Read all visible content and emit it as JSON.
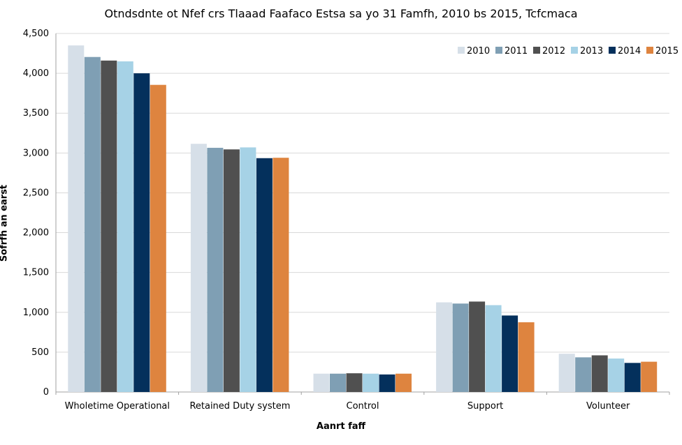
{
  "chart_data": {
    "type": "bar",
    "title": "Otndsdnte ot Nfef crs Tlaaad Faafaco Estsa sa yo 31 Famfh, 2010 bs 2015, Tcfcmaca",
    "xlabel": "Aanrt faff",
    "ylabel": "Sofrfh an earst",
    "ylim": [
      0,
      4500
    ],
    "yticks": [
      "0",
      "500",
      "1,000",
      "1,500",
      "2,000",
      "2,500",
      "3,000",
      "3,500",
      "4,000",
      "4,500"
    ],
    "ytick_values": [
      0,
      500,
      1000,
      1500,
      2000,
      2500,
      3000,
      3500,
      4000,
      4500
    ],
    "grid": true,
    "legend_position": "top-right",
    "categories": [
      "Wholetime Operational",
      "Retained Duty system",
      "Control",
      "Support",
      "Volunteer"
    ],
    "series": [
      {
        "name": "2010",
        "color": "#d6dfe8",
        "values": [
          4350,
          3115,
          230,
          1125,
          480
        ]
      },
      {
        "name": "2011",
        "color": "#7f9fb4",
        "values": [
          4205,
          3065,
          230,
          1110,
          435
        ]
      },
      {
        "name": "2012",
        "color": "#505050",
        "values": [
          4160,
          3045,
          235,
          1135,
          460
        ]
      },
      {
        "name": "2013",
        "color": "#a6d2e6",
        "values": [
          4150,
          3070,
          230,
          1090,
          420
        ]
      },
      {
        "name": "2014",
        "color": "#04305c",
        "values": [
          4000,
          2935,
          220,
          960,
          365
        ]
      },
      {
        "name": "2015",
        "color": "#de843f",
        "values": [
          3855,
          2940,
          230,
          875,
          380
        ]
      }
    ]
  }
}
